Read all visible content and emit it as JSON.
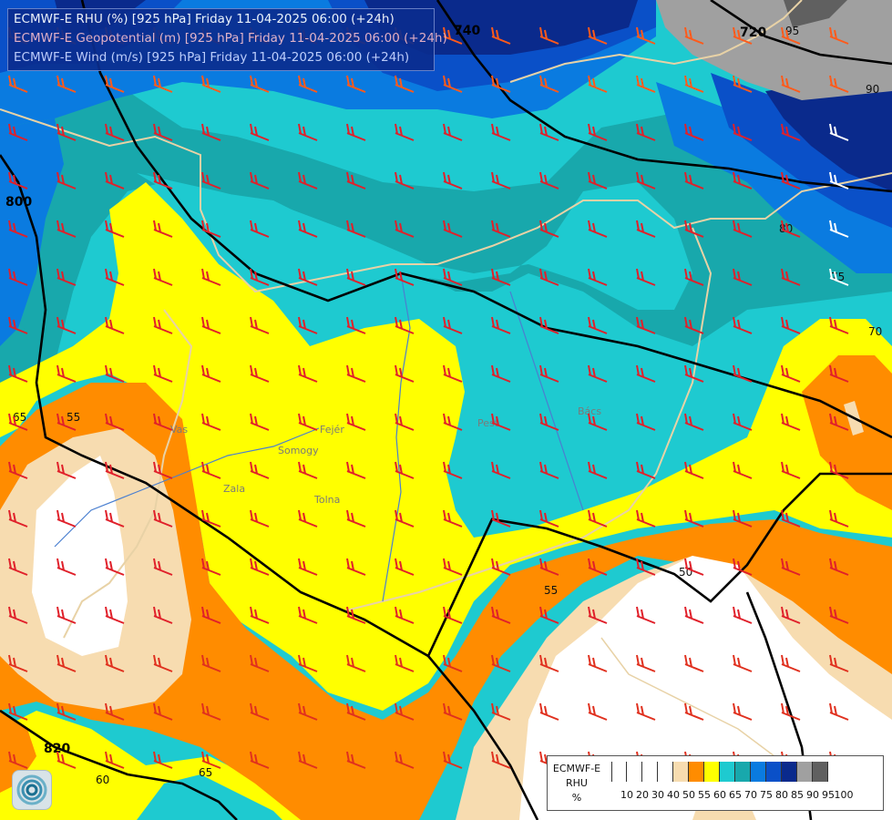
{
  "header": {
    "lines": [
      "ECMWF-E RHU (%) [925 hPa] Friday 11-04-2025 06:00 (+24h)",
      "ECMWF-E Geopotential (m) [925 hPa] Friday 11-04-2025 06:00 (+24h)",
      "ECMWF-E Wind (m/s) [925 hPa] Friday 11-04-2025 06:00 (+24h)"
    ],
    "colors": [
      "#ffffff",
      "#f2b8c8",
      "#ccd6ff"
    ]
  },
  "geopotential_labels": [
    "740",
    "720",
    "800",
    "820"
  ],
  "rhu_labels": [
    "95",
    "90",
    "80",
    "75",
    "70",
    "65",
    "55",
    "55",
    "50",
    "65",
    "60"
  ],
  "place_labels": [
    "Vas",
    "Zala",
    "Somogy",
    "Tolna",
    "Fejér",
    "Pest",
    "Bács"
  ],
  "legend": {
    "title_lines": [
      "ECMWF-E",
      "RHU",
      "%"
    ],
    "ticks": [
      "10",
      "20",
      "30",
      "40",
      "50",
      "55",
      "60",
      "65",
      "70",
      "75",
      "80",
      "85",
      "90",
      "95",
      "100"
    ],
    "colors": [
      "#ffffff",
      "#ffffff",
      "#ffffff",
      "#ffffff",
      "#f7dcb0",
      "#ff8c00",
      "#ffff00",
      "#1ecad0",
      "#18a8ac",
      "#0a7be0",
      "#0a50c8",
      "#0a2a8c",
      "#a0a0a0",
      "#606060"
    ]
  },
  "logo": {
    "icon": "ecmwf-swirl-icon"
  }
}
